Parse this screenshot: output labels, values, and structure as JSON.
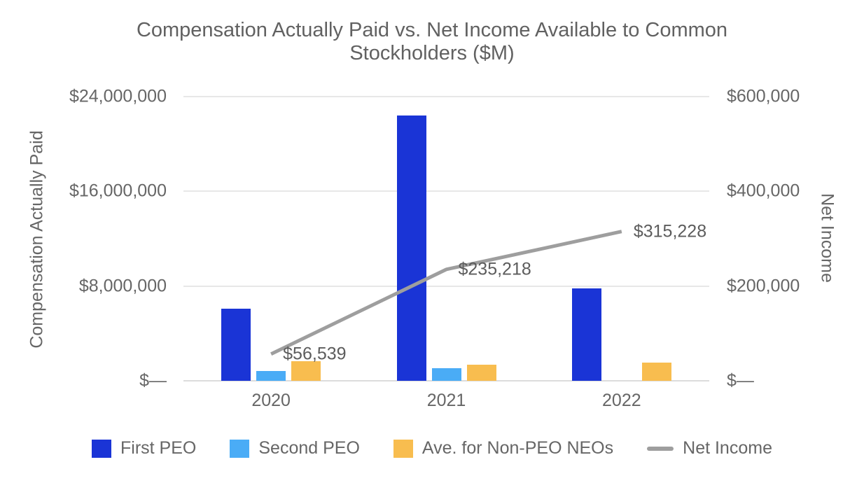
{
  "title": "Compensation Actually Paid vs. Net Income Available to Common Stockholders ($M)",
  "chart_data": {
    "type": "bar",
    "subtype": "grouped-bar-with-line-dual-axis",
    "title": "Compensation Actually Paid vs. Net Income Available to Common Stockholders ($M)",
    "categories": [
      "2020",
      "2021",
      "2022"
    ],
    "series": [
      {
        "name": "First PEO",
        "type": "bar",
        "axis": "left",
        "color": "#1a34d6",
        "values": [
          6100000,
          22400000,
          7800000
        ]
      },
      {
        "name": "Second PEO",
        "type": "bar",
        "axis": "left",
        "color": "#4aacf6",
        "values": [
          850000,
          1050000,
          0
        ]
      },
      {
        "name": "Ave. for Non-PEO NEOs",
        "type": "bar",
        "axis": "left",
        "color": "#f8bd4f",
        "values": [
          1650000,
          1350000,
          1550000
        ]
      },
      {
        "name": "Net Income",
        "type": "line",
        "axis": "right",
        "color": "#9e9e9e",
        "values": [
          56539,
          235218,
          315228
        ],
        "point_labels": [
          "$56,539",
          "$235,218",
          "$315,228"
        ]
      }
    ],
    "left_axis": {
      "title": "Compensation Actually Paid",
      "max": 24000000,
      "ticks": [
        {
          "label": "$—",
          "value": 0
        },
        {
          "label": "$8,000,000",
          "value": 8000000
        },
        {
          "label": "$16,000,000",
          "value": 16000000
        },
        {
          "label": "$24,000,000",
          "value": 24000000
        }
      ]
    },
    "right_axis": {
      "title": "Net Income",
      "max": 600000,
      "ticks": [
        {
          "label": "$—",
          "value": 0
        },
        {
          "label": "$200,000",
          "value": 200000
        },
        {
          "label": "$400,000",
          "value": 400000
        },
        {
          "label": "$600,000",
          "value": 600000
        }
      ]
    },
    "grid": true,
    "legend_position": "bottom",
    "legend": [
      "First PEO",
      "Second PEO",
      "Ave. for Non-PEO NEOs",
      "Net Income"
    ]
  }
}
